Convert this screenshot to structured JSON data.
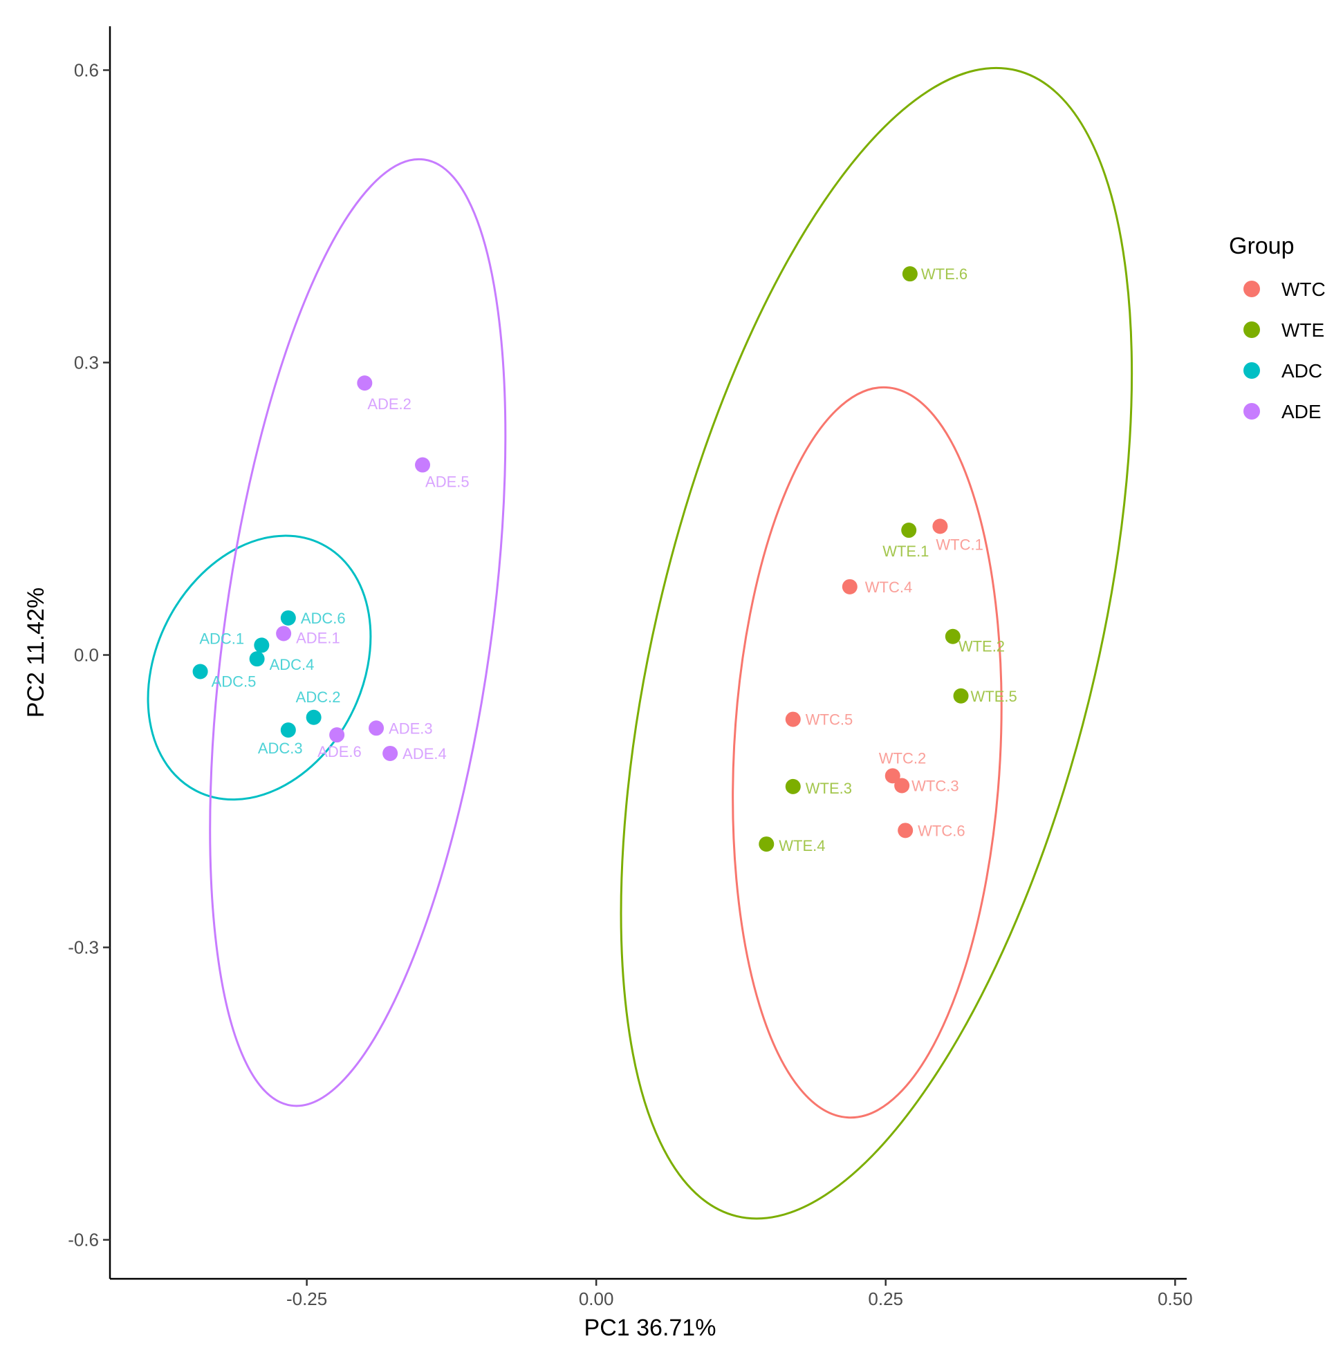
{
  "chart_data": {
    "type": "scatter",
    "title": "",
    "xlabel": "PC1 36.71%",
    "ylabel": "PC2 11.42%",
    "xlim": [
      -0.42,
      0.51
    ],
    "ylim": [
      -0.64,
      0.645
    ],
    "xticks": [
      -0.25,
      0.0,
      0.25,
      0.5
    ],
    "xtick_labels": [
      "-0.25",
      "0.00",
      "0.25",
      "0.50"
    ],
    "yticks": [
      0.6,
      0.3,
      0.0,
      -0.3,
      -0.6
    ],
    "ytick_labels": [
      "0.6",
      "0.3",
      "0.0",
      "-0.3",
      "-0.6"
    ],
    "grid": false,
    "legend": {
      "title": "Group",
      "position": "right"
    },
    "series": [
      {
        "name": "WTC",
        "color": "#F8766D",
        "points": [
          {
            "label": "WTC.1",
            "x": 0.297,
            "y": 0.132
          },
          {
            "label": "WTC.2",
            "x": 0.256,
            "y": -0.124
          },
          {
            "label": "WTC.3",
            "x": 0.264,
            "y": -0.134
          },
          {
            "label": "WTC.4",
            "x": 0.219,
            "y": 0.07
          },
          {
            "label": "WTC.5",
            "x": 0.17,
            "y": -0.066
          },
          {
            "label": "WTC.6",
            "x": 0.267,
            "y": -0.18
          }
        ],
        "ellipse": {
          "cx": 0.234,
          "cy": -0.1,
          "rx": 0.115,
          "ry": 0.375,
          "angle": 3
        }
      },
      {
        "name": "WTE",
        "color": "#7CAE00",
        "points": [
          {
            "label": "WTE.1",
            "x": 0.27,
            "y": 0.128
          },
          {
            "label": "WTE.2",
            "x": 0.308,
            "y": 0.019
          },
          {
            "label": "WTE.3",
            "x": 0.17,
            "y": -0.135
          },
          {
            "label": "WTE.4",
            "x": 0.147,
            "y": -0.194
          },
          {
            "label": "WTE.5",
            "x": 0.315,
            "y": -0.042
          },
          {
            "label": "WTE.6",
            "x": 0.271,
            "y": 0.391
          }
        ],
        "ellipse": {
          "cx": 0.242,
          "cy": 0.012,
          "rx": 0.19,
          "ry": 0.605,
          "angle": 13.7
        }
      },
      {
        "name": "ADC",
        "color": "#00BFC4",
        "points": [
          {
            "label": "ADC.1",
            "x": -0.289,
            "y": 0.01
          },
          {
            "label": "ADC.2",
            "x": -0.244,
            "y": -0.064
          },
          {
            "label": "ADC.3",
            "x": -0.266,
            "y": -0.077
          },
          {
            "label": "ADC.4",
            "x": -0.293,
            "y": -0.004
          },
          {
            "label": "ADC.5",
            "x": -0.342,
            "y": -0.017
          },
          {
            "label": "ADC.6",
            "x": -0.266,
            "y": 0.038
          }
        ],
        "ellipse": {
          "cx": -0.291,
          "cy": -0.013,
          "rx": 0.089,
          "ry": 0.142,
          "angle": 27
        }
      },
      {
        "name": "ADE",
        "color": "#C77CFF",
        "points": [
          {
            "label": "ADE.1",
            "x": -0.27,
            "y": 0.022
          },
          {
            "label": "ADE.2",
            "x": -0.2,
            "y": 0.279
          },
          {
            "label": "ADE.3",
            "x": -0.19,
            "y": -0.075
          },
          {
            "label": "ADE.4",
            "x": -0.178,
            "y": -0.101
          },
          {
            "label": "ADE.5",
            "x": -0.15,
            "y": 0.195
          },
          {
            "label": "ADE.6",
            "x": -0.224,
            "y": -0.082
          }
        ],
        "ellipse": {
          "cx": -0.206,
          "cy": 0.023,
          "rx": 0.115,
          "ry": 0.49,
          "angle": 8
        }
      }
    ]
  }
}
